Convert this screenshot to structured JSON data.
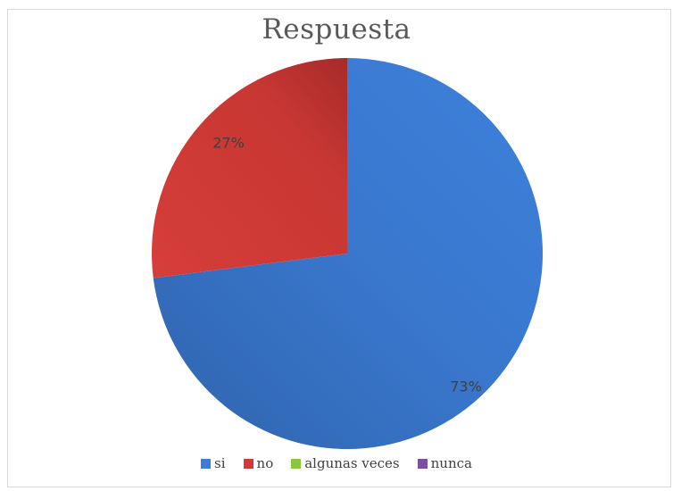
{
  "chart_data": {
    "type": "pie",
    "title": "Respuesta",
    "categories": [
      "si",
      "no",
      "algunas veces",
      "nunca"
    ],
    "values": [
      73,
      27,
      0,
      0
    ],
    "data_labels": [
      "73%",
      "27%",
      "",
      ""
    ],
    "colors": [
      "#3b7dd8",
      "#d13b37",
      "#8cc640",
      "#7b4fa2"
    ],
    "legend_position": "bottom"
  }
}
